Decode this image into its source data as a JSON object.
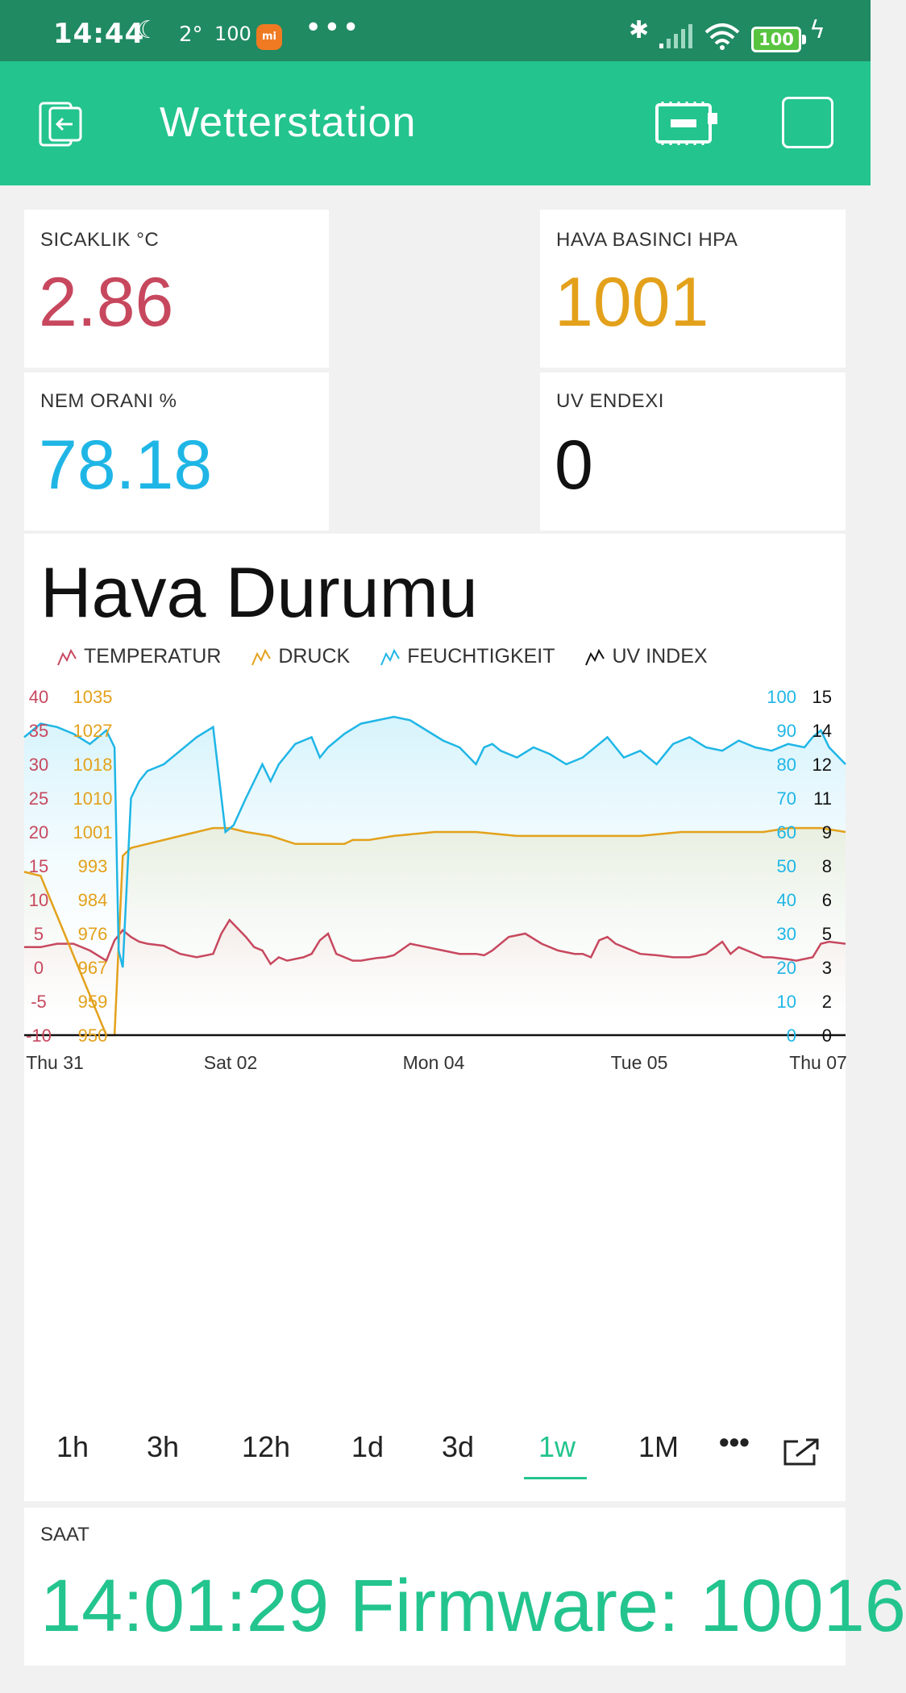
{
  "status_bar": {
    "time": "14:44",
    "temp": "2°",
    "aqi": "100",
    "mi_badge": "mi",
    "more": "•••",
    "battery": "100"
  },
  "app_bar": {
    "title": "Wetterstation"
  },
  "widgets": [
    {
      "label": "SICAKLIK °C",
      "value": "2.86",
      "color": "#c7485e"
    },
    {
      "label": "HAVA BASINCI HPA",
      "value": "1001",
      "color": "#e3a11b"
    },
    {
      "label": "NEM ORANI %",
      "value": "78.18",
      "color": "#1fb6e6"
    },
    {
      "label": "UV ENDEXI",
      "value": "0",
      "color": "#111111"
    }
  ],
  "chart": {
    "title": "Hava Durumu",
    "legend": [
      {
        "name": "TEMPERATUR",
        "color": "#c7485e"
      },
      {
        "name": "DRUCK",
        "color": "#e3a11b"
      },
      {
        "name": "FEUCHTIGKEIT",
        "color": "#1fb6e6"
      },
      {
        "name": "UV INDEX",
        "color": "#111111"
      }
    ]
  },
  "chart_data": {
    "type": "line",
    "title": "Hava Durumu",
    "x_ticks": [
      "Thu 31",
      "Sat 02",
      "Mon 04",
      "Tue 05",
      "Thu 07"
    ],
    "axes": {
      "temperature": {
        "ticks": [
          "40",
          "35",
          "30",
          "25",
          "20",
          "15",
          "10",
          "5",
          "0",
          "-5",
          "-10"
        ],
        "range": [
          -10,
          40
        ],
        "color": "#c7485e"
      },
      "pressure": {
        "ticks": [
          "1035",
          "1027",
          "1018",
          "1010",
          "1001",
          "993",
          "984",
          "976",
          "967",
          "959",
          "950"
        ],
        "range": [
          950,
          1035
        ],
        "color": "#e3a11b"
      },
      "humidity": {
        "ticks": [
          "100",
          "90",
          "80",
          "70",
          "60",
          "50",
          "40",
          "30",
          "20",
          "10",
          "0"
        ],
        "range": [
          0,
          100
        ],
        "color": "#1fb6e6"
      },
      "uv": {
        "ticks": [
          "15",
          "14",
          "12",
          "11",
          "9",
          "8",
          "6",
          "5",
          "3",
          "2",
          "0"
        ],
        "range": [
          0,
          15
        ],
        "color": "#111111"
      }
    },
    "series": [
      {
        "name": "TEMPERATUR",
        "color": "#c7485e",
        "x": [
          0,
          0.02,
          0.04,
          0.06,
          0.08,
          0.1,
          0.11,
          0.12,
          0.13,
          0.14,
          0.15,
          0.17,
          0.19,
          0.21,
          0.23,
          0.24,
          0.25,
          0.27,
          0.28,
          0.29,
          0.3,
          0.31,
          0.32,
          0.34,
          0.35,
          0.36,
          0.37,
          0.38,
          0.39,
          0.4,
          0.41,
          0.42,
          0.43,
          0.44,
          0.45,
          0.47,
          0.49,
          0.51,
          0.53,
          0.55,
          0.56,
          0.57,
          0.59,
          0.61,
          0.63,
          0.65,
          0.67,
          0.68,
          0.69,
          0.7,
          0.71,
          0.72,
          0.73,
          0.74,
          0.75,
          0.77,
          0.79,
          0.81,
          0.83,
          0.85,
          0.86,
          0.87,
          0.88,
          0.9,
          0.91,
          0.93,
          0.94,
          0.96,
          0.97,
          0.98,
          1.0
        ],
        "y": [
          3.0,
          3.0,
          3.5,
          3.5,
          2.5,
          1.0,
          4.0,
          5.5,
          4.5,
          3.8,
          3.5,
          3.2,
          2.0,
          1.5,
          2.0,
          5.0,
          7.0,
          4.5,
          3.0,
          2.5,
          0.5,
          1.5,
          1.0,
          1.5,
          2.0,
          4.0,
          5.0,
          2.0,
          1.5,
          1.0,
          1.0,
          1.2,
          1.4,
          1.5,
          1.8,
          3.5,
          3.0,
          2.5,
          2.0,
          2.0,
          1.8,
          2.5,
          4.5,
          5.0,
          3.5,
          2.5,
          2.0,
          2.0,
          1.5,
          4.0,
          4.5,
          3.5,
          3.0,
          2.5,
          2.0,
          1.8,
          1.5,
          1.5,
          2.0,
          3.8,
          2.0,
          3.0,
          2.5,
          1.5,
          1.5,
          1.2,
          1.0,
          1.5,
          3.5,
          3.8,
          3.5
        ]
      },
      {
        "name": "DRUCK",
        "color": "#e3a11b",
        "x": [
          0,
          0.02,
          0.1,
          0.11,
          0.12,
          0.125,
          0.13,
          0.15,
          0.17,
          0.19,
          0.21,
          0.23,
          0.25,
          0.27,
          0.3,
          0.33,
          0.36,
          0.39,
          0.4,
          0.42,
          0.45,
          0.5,
          0.55,
          0.6,
          0.62,
          0.65,
          0.7,
          0.75,
          0.8,
          0.85,
          0.9,
          0.93,
          0.95,
          0.97,
          1.0
        ],
        "y": [
          991,
          990,
          950,
          950,
          995,
          996,
          997,
          998,
          999,
          1000,
          1001,
          1002,
          1002,
          1001,
          1000,
          998,
          998,
          998,
          999,
          999,
          1000,
          1001,
          1001,
          1000,
          1000,
          1000,
          1000,
          1000,
          1001,
          1001,
          1001,
          1002,
          1002,
          1002,
          1001
        ]
      },
      {
        "name": "FEUCHTIGKEIT",
        "color": "#1fb6e6",
        "x": [
          0,
          0.01,
          0.02,
          0.04,
          0.06,
          0.08,
          0.1,
          0.11,
          0.115,
          0.12,
          0.13,
          0.14,
          0.15,
          0.17,
          0.19,
          0.21,
          0.23,
          0.245,
          0.255,
          0.27,
          0.29,
          0.3,
          0.31,
          0.33,
          0.35,
          0.36,
          0.37,
          0.39,
          0.41,
          0.43,
          0.45,
          0.47,
          0.49,
          0.51,
          0.53,
          0.55,
          0.56,
          0.57,
          0.58,
          0.6,
          0.62,
          0.64,
          0.66,
          0.68,
          0.7,
          0.71,
          0.72,
          0.73,
          0.75,
          0.77,
          0.79,
          0.81,
          0.83,
          0.85,
          0.87,
          0.89,
          0.91,
          0.93,
          0.95,
          0.96,
          0.97,
          0.98,
          1.0
        ],
        "y": [
          88,
          90,
          92,
          91,
          89,
          86,
          90,
          85,
          25,
          20,
          70,
          75,
          78,
          80,
          84,
          88,
          91,
          60,
          62,
          70,
          80,
          75,
          80,
          86,
          88,
          82,
          85,
          89,
          92,
          93,
          94,
          93,
          90,
          87,
          85,
          80,
          85,
          86,
          84,
          82,
          85,
          83,
          80,
          82,
          86,
          88,
          85,
          82,
          84,
          80,
          86,
          88,
          85,
          84,
          87,
          85,
          84,
          86,
          85,
          88,
          90,
          85,
          80
        ]
      },
      {
        "name": "UV INDEX",
        "color": "#111111",
        "x": [
          0,
          1.0
        ],
        "y": [
          0,
          0
        ]
      }
    ]
  },
  "time_ranges": [
    "1h",
    "3h",
    "12h",
    "1d",
    "3d",
    "1w",
    "1M"
  ],
  "active_range": "1w",
  "saat": {
    "label": "SAAT",
    "value": "14:01:29 Firmware: 10016"
  }
}
